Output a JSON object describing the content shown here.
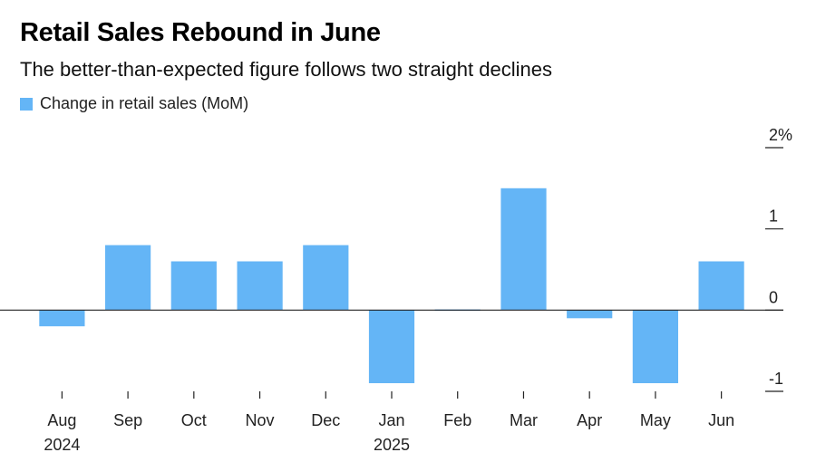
{
  "title": "Retail Sales Rebound in June",
  "subtitle": "The better-than-expected figure follows two straight declines",
  "colors": {
    "bar": "#64b5f6",
    "axis": "#222222",
    "background": "#ffffff"
  },
  "chart_data": {
    "type": "bar",
    "title": "Retail Sales Rebound in June",
    "subtitle": "The better-than-expected figure follows two straight declines",
    "categories": [
      "Aug",
      "Sep",
      "Oct",
      "Nov",
      "Dec",
      "Jan",
      "Feb",
      "Mar",
      "Apr",
      "May",
      "Jun"
    ],
    "year_labels": [
      "2024",
      "",
      "",
      "",
      "",
      "2025",
      "",
      "",
      "",
      "",
      ""
    ],
    "series": [
      {
        "name": "Change in retail sales (MoM)",
        "values": [
          -0.2,
          0.8,
          0.6,
          0.6,
          0.8,
          -0.9,
          0.0,
          1.5,
          -0.1,
          -0.9,
          0.6
        ]
      }
    ],
    "ylim": [
      -1,
      2
    ],
    "yticks": [
      -1,
      0,
      1,
      2
    ],
    "ytick_labels": [
      "-1",
      "0",
      "1",
      "2%"
    ],
    "xlabel": "",
    "ylabel": "",
    "legend_position": "top-left",
    "grid": false
  }
}
